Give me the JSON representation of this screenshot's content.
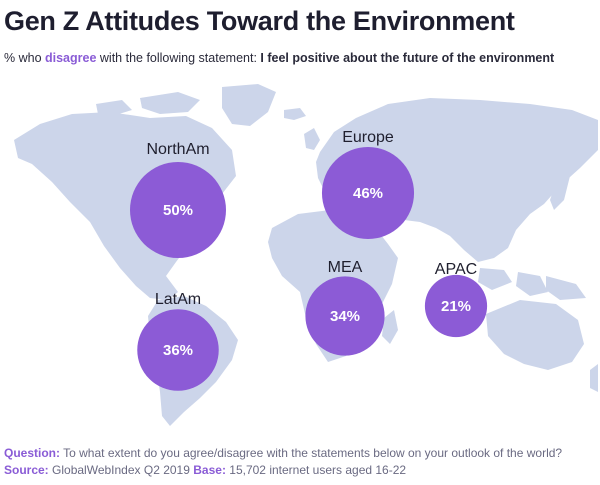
{
  "title": "Gen Z Attitudes Toward the Environment",
  "subtitle": {
    "prefix": "% who ",
    "highlight": "disagree",
    "middle": " with the following statement: ",
    "statement": "I feel positive about the future of the environment"
  },
  "footer": {
    "question_label": "Question:",
    "question": "To what extent do you agree/disagree with the statements below on your outlook of the world?",
    "source_label": "Source:",
    "source": "GlobalWebIndex Q2 2019",
    "base_label": "Base:",
    "base": "15,702 internet users aged 16-22"
  },
  "colors": {
    "bubble": "#8c5bd6",
    "land": "#ccd5ea",
    "highlight": "#8a5cd6"
  },
  "chart_data": {
    "type": "bubble-map",
    "unit": "%",
    "points": [
      {
        "region": "NorthAm",
        "value": 50,
        "label": "50%"
      },
      {
        "region": "Europe",
        "value": 46,
        "label": "46%"
      },
      {
        "region": "MEA",
        "value": 34,
        "label": "34%"
      },
      {
        "region": "LatAm",
        "value": 36,
        "label": "36%"
      },
      {
        "region": "APAC",
        "value": 21,
        "label": "21%"
      }
    ]
  }
}
